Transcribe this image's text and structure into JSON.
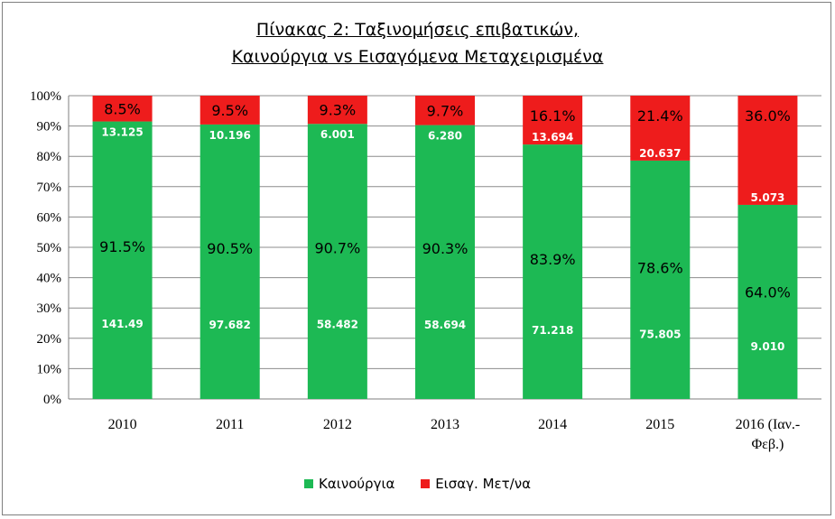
{
  "chart_data": {
    "type": "bar",
    "stacked": true,
    "title": "Πίνακας 2: Ταξινομήσεις επιβατικών,",
    "subtitle": "Καινούργια vs Εισαγόμενα Μεταχειρισμένα",
    "categories": [
      "2010",
      "2011",
      "2012",
      "2013",
      "2014",
      "2015",
      "2016 (Ιαν.-Φεβ.)"
    ],
    "ylim": [
      0,
      100
    ],
    "yticks": [
      "0%",
      "10%",
      "20%",
      "30%",
      "40%",
      "50%",
      "60%",
      "70%",
      "80%",
      "90%",
      "100%"
    ],
    "grid": true,
    "legend_position": "bottom",
    "series": [
      {
        "name": "Καινούργια",
        "color": "#1db954",
        "values": [
          91.5,
          90.5,
          90.7,
          90.3,
          83.9,
          78.6,
          64.0
        ],
        "percent_labels": [
          "91.5%",
          "90.5%",
          "90.7%",
          "90.3%",
          "83.9%",
          "78.6%",
          "64.0%"
        ],
        "count_labels": [
          "141.49",
          "97.682",
          "58.482",
          "58.694",
          "71.218",
          "75.805",
          "9.010"
        ]
      },
      {
        "name": "Εισαγ. Μετ/να",
        "color": "#ee1c1c",
        "values": [
          8.5,
          9.5,
          9.3,
          9.7,
          16.1,
          21.4,
          36.0
        ],
        "percent_labels": [
          "8.5%",
          "9.5%",
          "9.3%",
          "9.7%",
          "16.1%",
          "21.4%",
          "36.0%"
        ],
        "count_labels": [
          "13.125",
          "10.196",
          "6.001",
          "6.280",
          "13.694",
          "20.637",
          "5.073"
        ]
      }
    ]
  }
}
